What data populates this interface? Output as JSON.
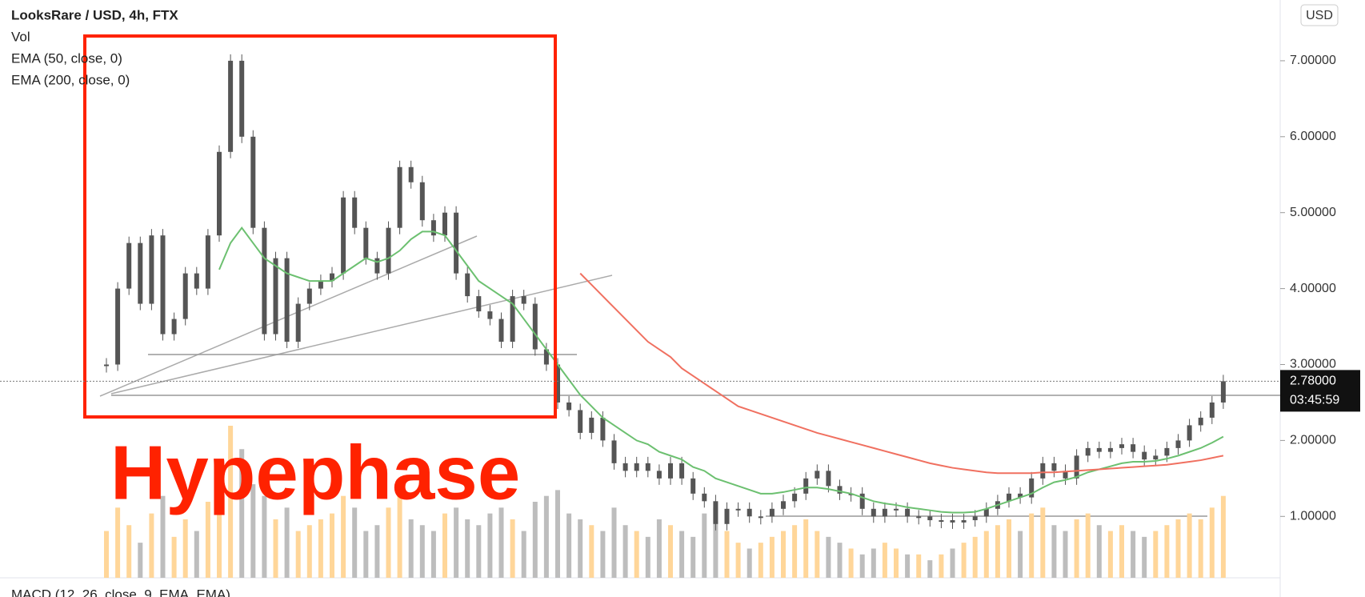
{
  "chart_data": {
    "type": "candlestick",
    "title": "LooksRare / USD, 4h, FTX",
    "indicators": [
      "Vol",
      "EMA (50, close, 0)",
      "EMA (200, close, 0)"
    ],
    "currency": "USD",
    "annotation": "Hypephase",
    "last_price_label": "2.78000",
    "countdown": "03:45:59",
    "macd_label": "MACD (12, 26, close, 9, EMA, EMA)",
    "candle_color": "#555555",
    "closes": [
      3.0,
      4.0,
      4.6,
      3.8,
      4.7,
      3.4,
      3.6,
      4.2,
      4.0,
      4.7,
      5.8,
      7.0,
      6.0,
      4.8,
      3.4,
      4.4,
      3.3,
      3.8,
      4.0,
      4.1,
      4.2,
      5.2,
      4.8,
      4.4,
      4.2,
      4.8,
      5.6,
      5.4,
      4.9,
      4.7,
      5.0,
      4.2,
      3.9,
      3.7,
      3.6,
      3.3,
      3.9,
      3.8,
      3.2,
      3.0,
      2.5,
      2.4,
      2.1,
      2.3,
      2.0,
      1.7,
      1.6,
      1.7,
      1.6,
      1.5,
      1.7,
      1.5,
      1.3,
      1.2,
      0.9,
      1.1,
      1.1,
      1.0,
      1.0,
      1.1,
      1.2,
      1.3,
      1.5,
      1.6,
      1.4,
      1.3,
      1.3,
      1.1,
      1.0,
      1.1,
      1.1,
      1.0,
      1.0,
      0.95,
      0.95,
      0.92,
      0.95,
      1.0,
      1.1,
      1.2,
      1.3,
      1.25,
      1.5,
      1.7,
      1.6,
      1.5,
      1.8,
      1.9,
      1.85,
      1.9,
      1.95,
      1.85,
      1.75,
      1.8,
      1.9,
      2.0,
      2.2,
      2.3,
      2.5,
      2.78
    ],
    "series": [
      {
        "name": "EMA (50, close, 0)",
        "color": "#6cc070",
        "values": [
          null,
          null,
          null,
          null,
          null,
          null,
          null,
          null,
          null,
          null,
          4.25,
          4.6,
          4.8,
          4.6,
          4.4,
          4.3,
          4.2,
          4.15,
          4.1,
          4.1,
          4.1,
          4.2,
          4.3,
          4.4,
          4.35,
          4.4,
          4.5,
          4.65,
          4.75,
          4.75,
          4.7,
          4.5,
          4.3,
          4.1,
          4.0,
          3.9,
          3.8,
          3.6,
          3.4,
          3.2,
          3.0,
          2.8,
          2.6,
          2.45,
          2.3,
          2.2,
          2.1,
          2.0,
          1.95,
          1.85,
          1.8,
          1.75,
          1.65,
          1.6,
          1.5,
          1.45,
          1.4,
          1.35,
          1.3,
          1.3,
          1.32,
          1.35,
          1.38,
          1.38,
          1.36,
          1.33,
          1.3,
          1.25,
          1.2,
          1.17,
          1.15,
          1.12,
          1.1,
          1.08,
          1.06,
          1.05,
          1.05,
          1.06,
          1.1,
          1.15,
          1.2,
          1.25,
          1.3,
          1.38,
          1.45,
          1.48,
          1.52,
          1.58,
          1.62,
          1.66,
          1.7,
          1.72,
          1.72,
          1.73,
          1.76,
          1.8,
          1.85,
          1.9,
          1.97,
          2.05
        ]
      },
      {
        "name": "EMA (200, close, 0)",
        "color": "#f07060",
        "values": [
          null,
          null,
          null,
          null,
          null,
          null,
          null,
          null,
          null,
          null,
          null,
          null,
          null,
          null,
          null,
          null,
          null,
          null,
          null,
          null,
          null,
          null,
          null,
          null,
          null,
          null,
          null,
          null,
          null,
          null,
          null,
          null,
          null,
          null,
          null,
          null,
          null,
          null,
          null,
          null,
          null,
          null,
          4.2,
          4.05,
          3.9,
          3.75,
          3.6,
          3.45,
          3.3,
          3.2,
          3.1,
          2.95,
          2.85,
          2.75,
          2.65,
          2.55,
          2.45,
          2.4,
          2.35,
          2.3,
          2.25,
          2.2,
          2.15,
          2.1,
          2.06,
          2.02,
          1.98,
          1.94,
          1.9,
          1.86,
          1.82,
          1.78,
          1.74,
          1.7,
          1.67,
          1.64,
          1.62,
          1.6,
          1.58,
          1.57,
          1.57,
          1.57,
          1.57,
          1.58,
          1.58,
          1.59,
          1.6,
          1.61,
          1.62,
          1.63,
          1.64,
          1.65,
          1.66,
          1.67,
          1.68,
          1.7,
          1.72,
          1.74,
          1.77,
          1.8
        ]
      }
    ],
    "volume": [
      40,
      60,
      45,
      30,
      55,
      70,
      35,
      50,
      40,
      65,
      90,
      130,
      110,
      80,
      70,
      50,
      60,
      40,
      45,
      50,
      55,
      70,
      60,
      40,
      45,
      60,
      80,
      50,
      45,
      40,
      55,
      60,
      50,
      45,
      55,
      60,
      50,
      40,
      65,
      70,
      75,
      55,
      50,
      45,
      40,
      60,
      45,
      40,
      35,
      50,
      45,
      40,
      35,
      55,
      60,
      40,
      30,
      25,
      30,
      35,
      40,
      45,
      50,
      40,
      35,
      30,
      25,
      20,
      25,
      30,
      25,
      20,
      20,
      15,
      20,
      25,
      30,
      35,
      40,
      45,
      50,
      40,
      55,
      60,
      45,
      40,
      50,
      55,
      45,
      40,
      45,
      40,
      35,
      40,
      45,
      50,
      55,
      50,
      60,
      70
    ],
    "volume_colors": {
      "up": "#ffd699",
      "down": "#bdbdbd"
    },
    "ylim": [
      0.16,
      7.8
    ],
    "yticks": [
      {
        "value": 1,
        "label": "1.00000"
      },
      {
        "value": 2,
        "label": "2.00000"
      },
      {
        "value": 3,
        "label": "3.00000"
      },
      {
        "value": 4,
        "label": "4.00000"
      },
      {
        "value": 5,
        "label": "5.00000"
      },
      {
        "value": 6,
        "label": "6.00000"
      },
      {
        "value": 7,
        "label": "7.00000"
      }
    ]
  }
}
